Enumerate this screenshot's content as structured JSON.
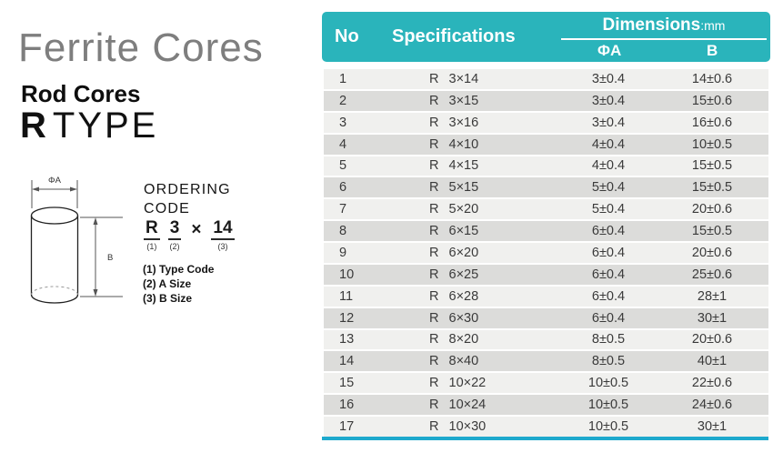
{
  "page": {
    "title": "Ferrite Cores",
    "subtitle": "Rod Cores",
    "type_prefix": "R",
    "type_suffix": "TYPE"
  },
  "diagram": {
    "diameter_label": "ΦA",
    "height_label": "B"
  },
  "ordering": {
    "heading_line1": "ORDERING",
    "heading_line2": "CODE",
    "code_parts": [
      {
        "text": "R",
        "index": "(1)",
        "underline": true
      },
      {
        "text": "3",
        "index": "(2)",
        "underline": true
      },
      {
        "text": "×",
        "index": "",
        "underline": false
      },
      {
        "text": "14",
        "index": "(3)",
        "underline": true
      }
    ],
    "legend": [
      "(1) Type Code",
      "(2) A Size",
      "(3) B Size"
    ]
  },
  "table": {
    "columns": {
      "no": "No",
      "spec": "Specifications",
      "dim_group": "Dimensions",
      "dim_unit": ":mm",
      "phi_a": "ΦA",
      "b": "B"
    },
    "rows": [
      {
        "no": "1",
        "spec": "R 3×14",
        "phi_a": "3±0.4",
        "b": "14±0.6"
      },
      {
        "no": "2",
        "spec": "R 3×15",
        "phi_a": "3±0.4",
        "b": "15±0.6"
      },
      {
        "no": "3",
        "spec": "R 3×16",
        "phi_a": "3±0.4",
        "b": "16±0.6"
      },
      {
        "no": "4",
        "spec": "R 4×10",
        "phi_a": "4±0.4",
        "b": "10±0.5"
      },
      {
        "no": "5",
        "spec": "R 4×15",
        "phi_a": "4±0.4",
        "b": "15±0.5"
      },
      {
        "no": "6",
        "spec": "R 5×15",
        "phi_a": "5±0.4",
        "b": "15±0.5"
      },
      {
        "no": "7",
        "spec": "R 5×20",
        "phi_a": "5±0.4",
        "b": "20±0.6"
      },
      {
        "no": "8",
        "spec": "R 6×15",
        "phi_a": "6±0.4",
        "b": "15±0.5"
      },
      {
        "no": "9",
        "spec": "R 6×20",
        "phi_a": "6±0.4",
        "b": "20±0.6"
      },
      {
        "no": "10",
        "spec": "R 6×25",
        "phi_a": "6±0.4",
        "b": "25±0.6"
      },
      {
        "no": "11",
        "spec": "R 6×28",
        "phi_a": "6±0.4",
        "b": "28±1"
      },
      {
        "no": "12",
        "spec": "R 6×30",
        "phi_a": "6±0.4",
        "b": "30±1"
      },
      {
        "no": "13",
        "spec": "R 8×20",
        "phi_a": "8±0.5",
        "b": "20±0.6"
      },
      {
        "no": "14",
        "spec": "R 8×40",
        "phi_a": "8±0.5",
        "b": "40±1"
      },
      {
        "no": "15",
        "spec": "R 10×22",
        "phi_a": "10±0.5",
        "b": "22±0.6"
      },
      {
        "no": "16",
        "spec": "R 10×24",
        "phi_a": "10±0.5",
        "b": "24±0.6"
      },
      {
        "no": "17",
        "spec": "R 10×30",
        "phi_a": "10±0.5",
        "b": "30±1"
      }
    ]
  },
  "colors": {
    "header_teal": "#2ab4bb",
    "bottom_border": "#1ea9cd",
    "row_light": "#f0f0ee",
    "row_dark": "#dcdcda"
  }
}
